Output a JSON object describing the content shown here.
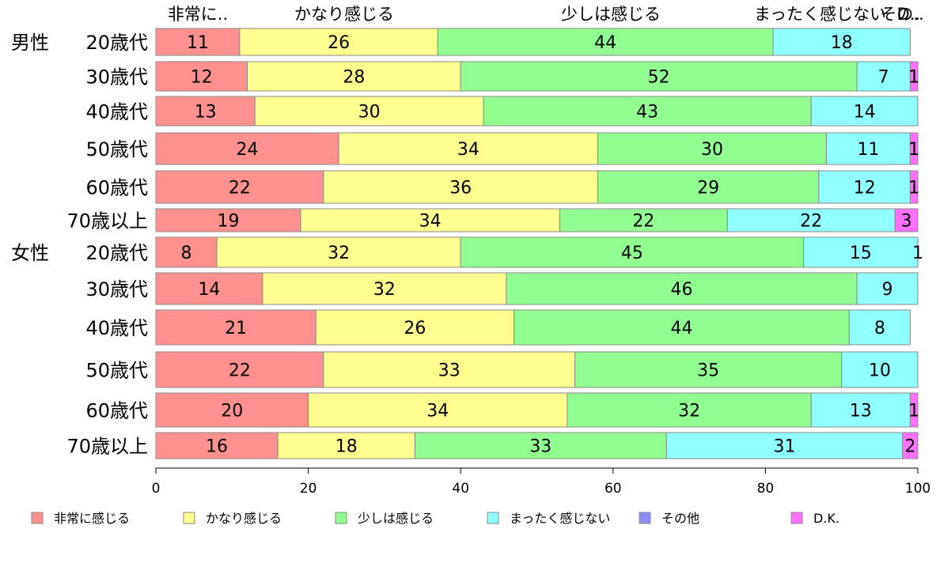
{
  "chart_data": {
    "type": "bar",
    "orientation": "horizontal",
    "stacked": true,
    "xlim": [
      0,
      100
    ],
    "xticks": [
      "0",
      "20",
      "40",
      "60",
      "80",
      "100"
    ],
    "grid": false,
    "legend_position": "bottom",
    "top_labels": [
      "非常に..",
      "かなり感じる",
      "少しは感じる",
      "まったく感じない",
      "その..",
      "D.."
    ],
    "groups": [
      {
        "label": "男性",
        "rows": [
          0,
          1,
          2,
          3,
          4,
          5
        ]
      },
      {
        "label": "女性",
        "rows": [
          6,
          7,
          8,
          9,
          10,
          11
        ]
      }
    ],
    "categories": [
      "20歳代",
      "30歳代",
      "40歳代",
      "50歳代",
      "60歳代",
      "70歳以上",
      "20歳代",
      "30歳代",
      "40歳代",
      "50歳代",
      "60歳代",
      "70歳以上"
    ],
    "series": [
      {
        "name": "非常に感じる",
        "color": "#ff9090",
        "values": [
          11,
          12,
          13,
          24,
          22,
          19,
          8,
          14,
          21,
          22,
          20,
          16
        ]
      },
      {
        "name": "かなり感じる",
        "color": "#ffff90",
        "values": [
          26,
          28,
          30,
          34,
          36,
          34,
          32,
          32,
          26,
          33,
          34,
          18
        ]
      },
      {
        "name": "少しは感じる",
        "color": "#90ff90",
        "values": [
          44,
          52,
          43,
          30,
          29,
          22,
          45,
          46,
          44,
          35,
          32,
          33
        ]
      },
      {
        "name": "まったく感じない",
        "color": "#90ffff",
        "values": [
          18,
          7,
          14,
          11,
          12,
          22,
          15,
          9,
          8,
          10,
          13,
          31
        ]
      },
      {
        "name": "その他",
        "color": "#8c8cf8",
        "values": [
          0,
          0,
          0,
          0,
          0,
          0,
          0,
          0,
          0,
          0,
          0,
          0
        ]
      },
      {
        "name": "D.K.",
        "color": "#ff70ff",
        "values": [
          0,
          1,
          0,
          1,
          1,
          3,
          1,
          0,
          0,
          0,
          1,
          2
        ]
      }
    ]
  }
}
